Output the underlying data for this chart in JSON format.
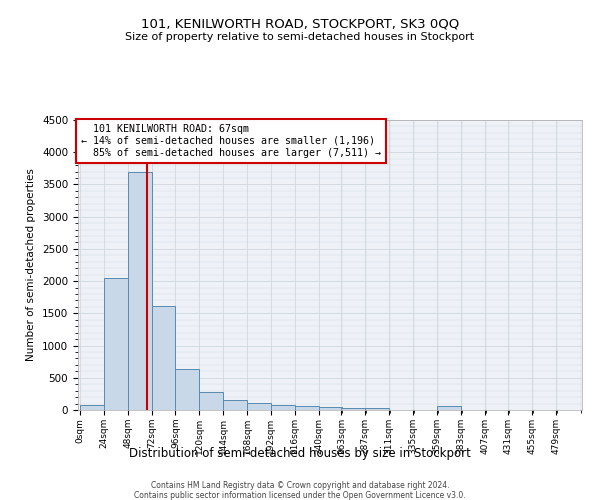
{
  "title": "101, KENILWORTH ROAD, STOCKPORT, SK3 0QQ",
  "subtitle": "Size of property relative to semi-detached houses in Stockport",
  "xlabel": "Distribution of semi-detached houses by size in Stockport",
  "ylabel": "Number of semi-detached properties",
  "footer1": "Contains HM Land Registry data © Crown copyright and database right 2024.",
  "footer2": "Contains public sector information licensed under the Open Government Licence v3.0.",
  "property_size": 67,
  "property_label": "101 KENILWORTH ROAD: 67sqm",
  "pct_smaller": 14,
  "pct_larger": 85,
  "n_smaller": "1,196",
  "n_larger": "7,511",
  "bin_labels": [
    "0sqm",
    "24sqm",
    "48sqm",
    "72sqm",
    "96sqm",
    "120sqm",
    "144sqm",
    "168sqm",
    "192sqm",
    "216sqm",
    "240sqm",
    "263sqm",
    "287sqm",
    "311sqm",
    "335sqm",
    "359sqm",
    "383sqm",
    "407sqm",
    "431sqm",
    "455sqm",
    "479sqm"
  ],
  "bin_starts": [
    0,
    24,
    48,
    72,
    96,
    120,
    144,
    168,
    192,
    216,
    240,
    263,
    287,
    311,
    335,
    359,
    383,
    407,
    431,
    455,
    479
  ],
  "bar_values": [
    80,
    2050,
    3700,
    1620,
    640,
    280,
    160,
    110,
    85,
    65,
    40,
    35,
    30,
    0,
    0,
    60,
    0,
    0,
    0,
    0,
    0
  ],
  "bar_color": "#c8d8e8",
  "bar_edge_color": "#5a8ab0",
  "annotation_box_color": "#cc0000",
  "property_line_color": "#cc0000",
  "grid_color": "#d0d8e0",
  "bg_color": "#eef2f7",
  "ylim": [
    0,
    4500
  ],
  "yticks": [
    0,
    500,
    1000,
    1500,
    2000,
    2500,
    3000,
    3500,
    4000,
    4500
  ]
}
